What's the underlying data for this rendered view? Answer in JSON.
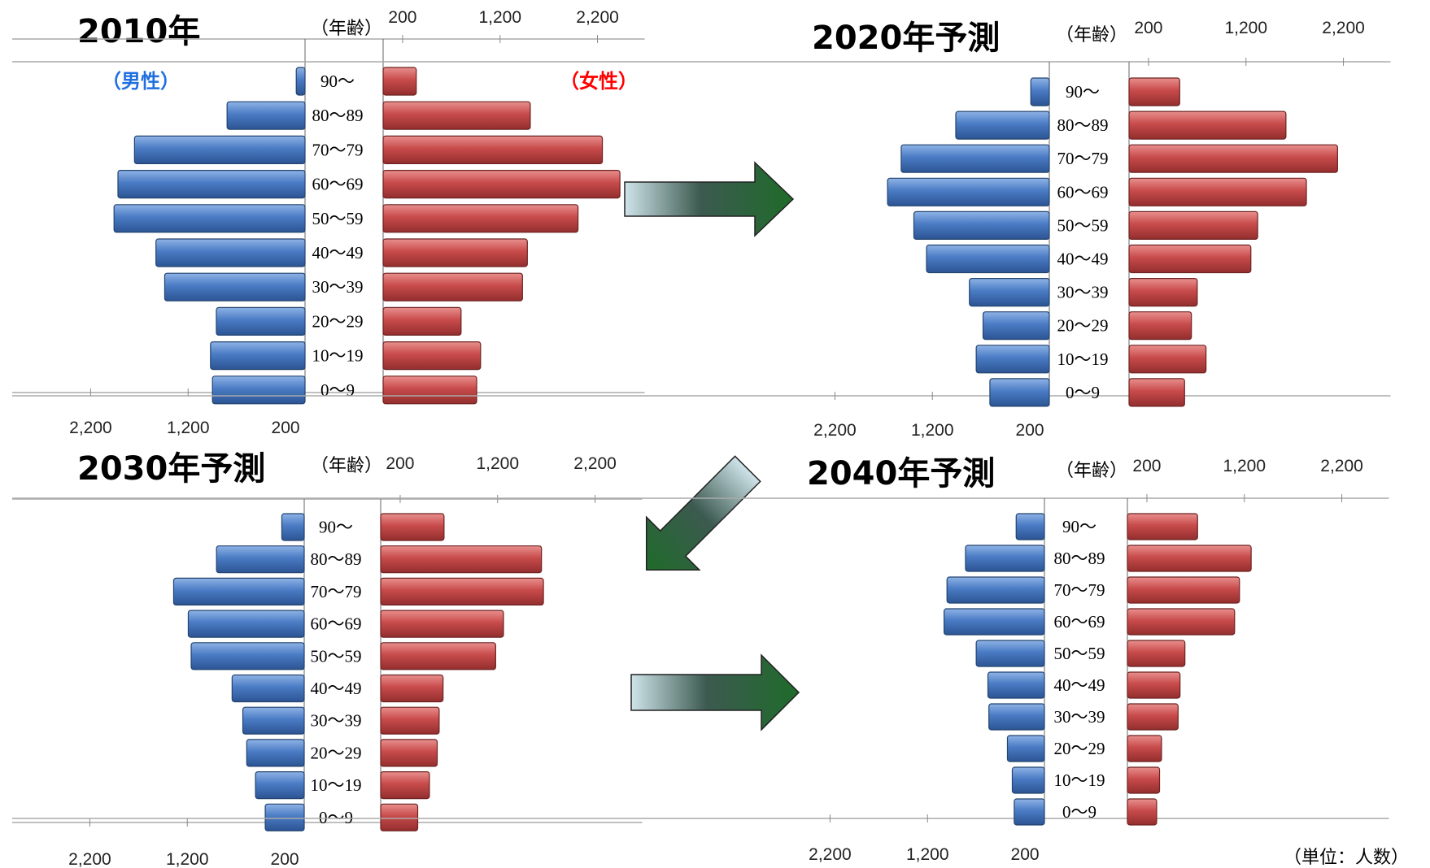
{
  "labels": {
    "male": "（男性）",
    "female": "（女性）",
    "age_header": "（年齢）",
    "unit": "（単位：人数）"
  },
  "colors": {
    "male": "#4a7bc4",
    "female": "#c84b4b",
    "arrow": "#1f6b2a",
    "male_label": "#1f6fe0",
    "female_label": "#ff0000"
  },
  "axis": {
    "max": 2600,
    "ticks": [
      200,
      1200,
      2200
    ],
    "tick_labels": [
      "200",
      "1,200",
      "2,200"
    ]
  },
  "chart_data": [
    {
      "type": "bar",
      "title": "2010年",
      "categories": [
        "90〜",
        "80〜89",
        "70〜79",
        "60〜69",
        "50〜59",
        "40〜49",
        "30〜39",
        "20〜29",
        "10〜19",
        "0〜9"
      ],
      "series": [
        {
          "name": "（男性）",
          "values": [
            90,
            800,
            1750,
            1920,
            1960,
            1530,
            1440,
            910,
            970,
            950
          ]
        },
        {
          "name": "（女性）",
          "values": [
            340,
            1510,
            2250,
            2430,
            2000,
            1480,
            1430,
            800,
            1000,
            960
          ]
        }
      ],
      "xlim": [
        0,
        2600
      ]
    },
    {
      "type": "bar",
      "title": "2020年予測",
      "categories": [
        "90〜",
        "80〜89",
        "70〜79",
        "60〜69",
        "50〜59",
        "40〜49",
        "30〜39",
        "20〜29",
        "10〜19",
        "0〜9"
      ],
      "series": [
        {
          "name": "（男性）",
          "values": [
            190,
            960,
            1520,
            1660,
            1390,
            1260,
            820,
            680,
            750,
            610
          ]
        },
        {
          "name": "（女性）",
          "values": [
            520,
            1610,
            2140,
            1820,
            1320,
            1250,
            700,
            640,
            790,
            570
          ]
        }
      ],
      "xlim": [
        0,
        2600
      ]
    },
    {
      "type": "bar",
      "title": "2030年予測",
      "categories": [
        "90〜",
        "80〜89",
        "70〜79",
        "60〜69",
        "50〜59",
        "40〜49",
        "30〜39",
        "20〜29",
        "10〜19",
        "0〜9"
      ],
      "series": [
        {
          "name": "（男性）",
          "values": [
            230,
            900,
            1340,
            1190,
            1160,
            740,
            630,
            590,
            500,
            400
          ]
        },
        {
          "name": "（女性）",
          "values": [
            650,
            1650,
            1670,
            1260,
            1180,
            640,
            600,
            580,
            500,
            380
          ]
        }
      ],
      "xlim": [
        0,
        2600
      ]
    },
    {
      "type": "bar",
      "title": "2040年予測",
      "categories": [
        "90〜",
        "80〜89",
        "70〜79",
        "60〜69",
        "50〜59",
        "40〜49",
        "30〜39",
        "20〜29",
        "10〜19",
        "0〜9"
      ],
      "series": [
        {
          "name": "（男性）",
          "values": [
            290,
            810,
            1000,
            1030,
            700,
            580,
            570,
            380,
            330,
            310
          ]
        },
        {
          "name": "（女性）",
          "values": [
            720,
            1270,
            1150,
            1100,
            590,
            540,
            520,
            350,
            330,
            300
          ]
        }
      ],
      "xlim": [
        0,
        2600
      ]
    }
  ]
}
